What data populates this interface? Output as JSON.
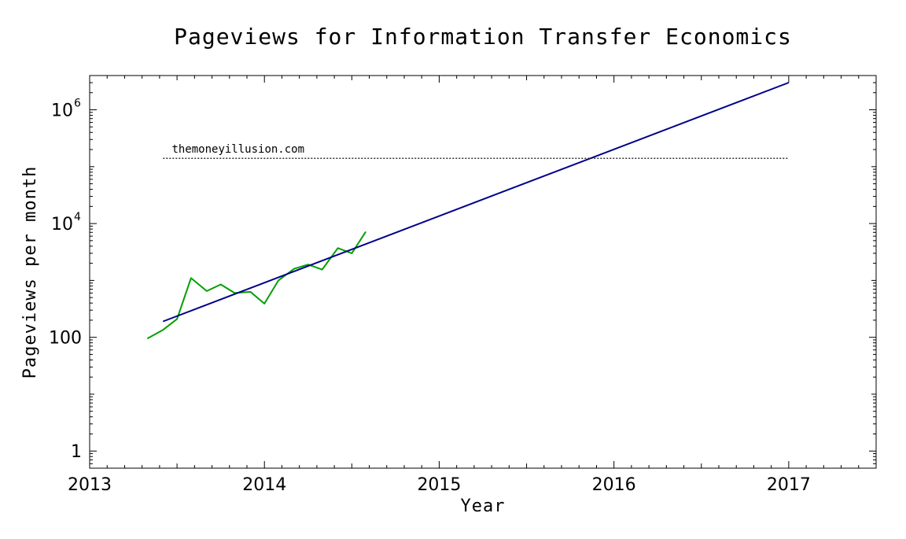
{
  "chart_data": {
    "type": "line",
    "title": "Pageviews for Information Transfer Economics",
    "xlabel": "Year",
    "ylabel": "Pageviews per month",
    "xlim": [
      2013,
      2017.5
    ],
    "ylim": [
      0.5,
      4000000
    ],
    "yscale": "log",
    "x_ticks": [
      {
        "value": 2013,
        "label": "2013"
      },
      {
        "value": 2014,
        "label": "2014"
      },
      {
        "value": 2015,
        "label": "2015"
      },
      {
        "value": 2016,
        "label": "2016"
      },
      {
        "value": 2017,
        "label": "2017"
      }
    ],
    "y_ticks": [
      {
        "value": 1,
        "base": "1",
        "exp": ""
      },
      {
        "value": 100,
        "base": "100",
        "exp": ""
      },
      {
        "value": 10000,
        "base": "10",
        "exp": "4"
      },
      {
        "value": 1000000,
        "base": "10",
        "exp": "6"
      }
    ],
    "grid": false,
    "series": [
      {
        "color": "#00a000",
        "style": "solid",
        "x": [
          2013.33,
          2013.42,
          2013.5,
          2013.58,
          2013.67,
          2013.75,
          2013.83,
          2013.92,
          2014.0,
          2014.08,
          2014.17,
          2014.25,
          2014.33,
          2014.42,
          2014.5,
          2014.58
        ],
        "y": [
          95,
          135,
          210,
          1100,
          650,
          850,
          600,
          630,
          390,
          1000,
          1600,
          1900,
          1550,
          3700,
          3000,
          7200
        ]
      },
      {
        "color": "#00008b",
        "style": "solid",
        "x": [
          2013.42,
          2017.0
        ],
        "y": [
          190,
          3000000
        ]
      },
      {
        "color": "#333333",
        "style": "dotted",
        "x": [
          2013.42,
          2017.0
        ],
        "y": [
          140000,
          140000
        ]
      }
    ],
    "annotations": [
      {
        "text": "themoneyillusion.com",
        "x": 2013.47,
        "y": 175000
      }
    ]
  }
}
